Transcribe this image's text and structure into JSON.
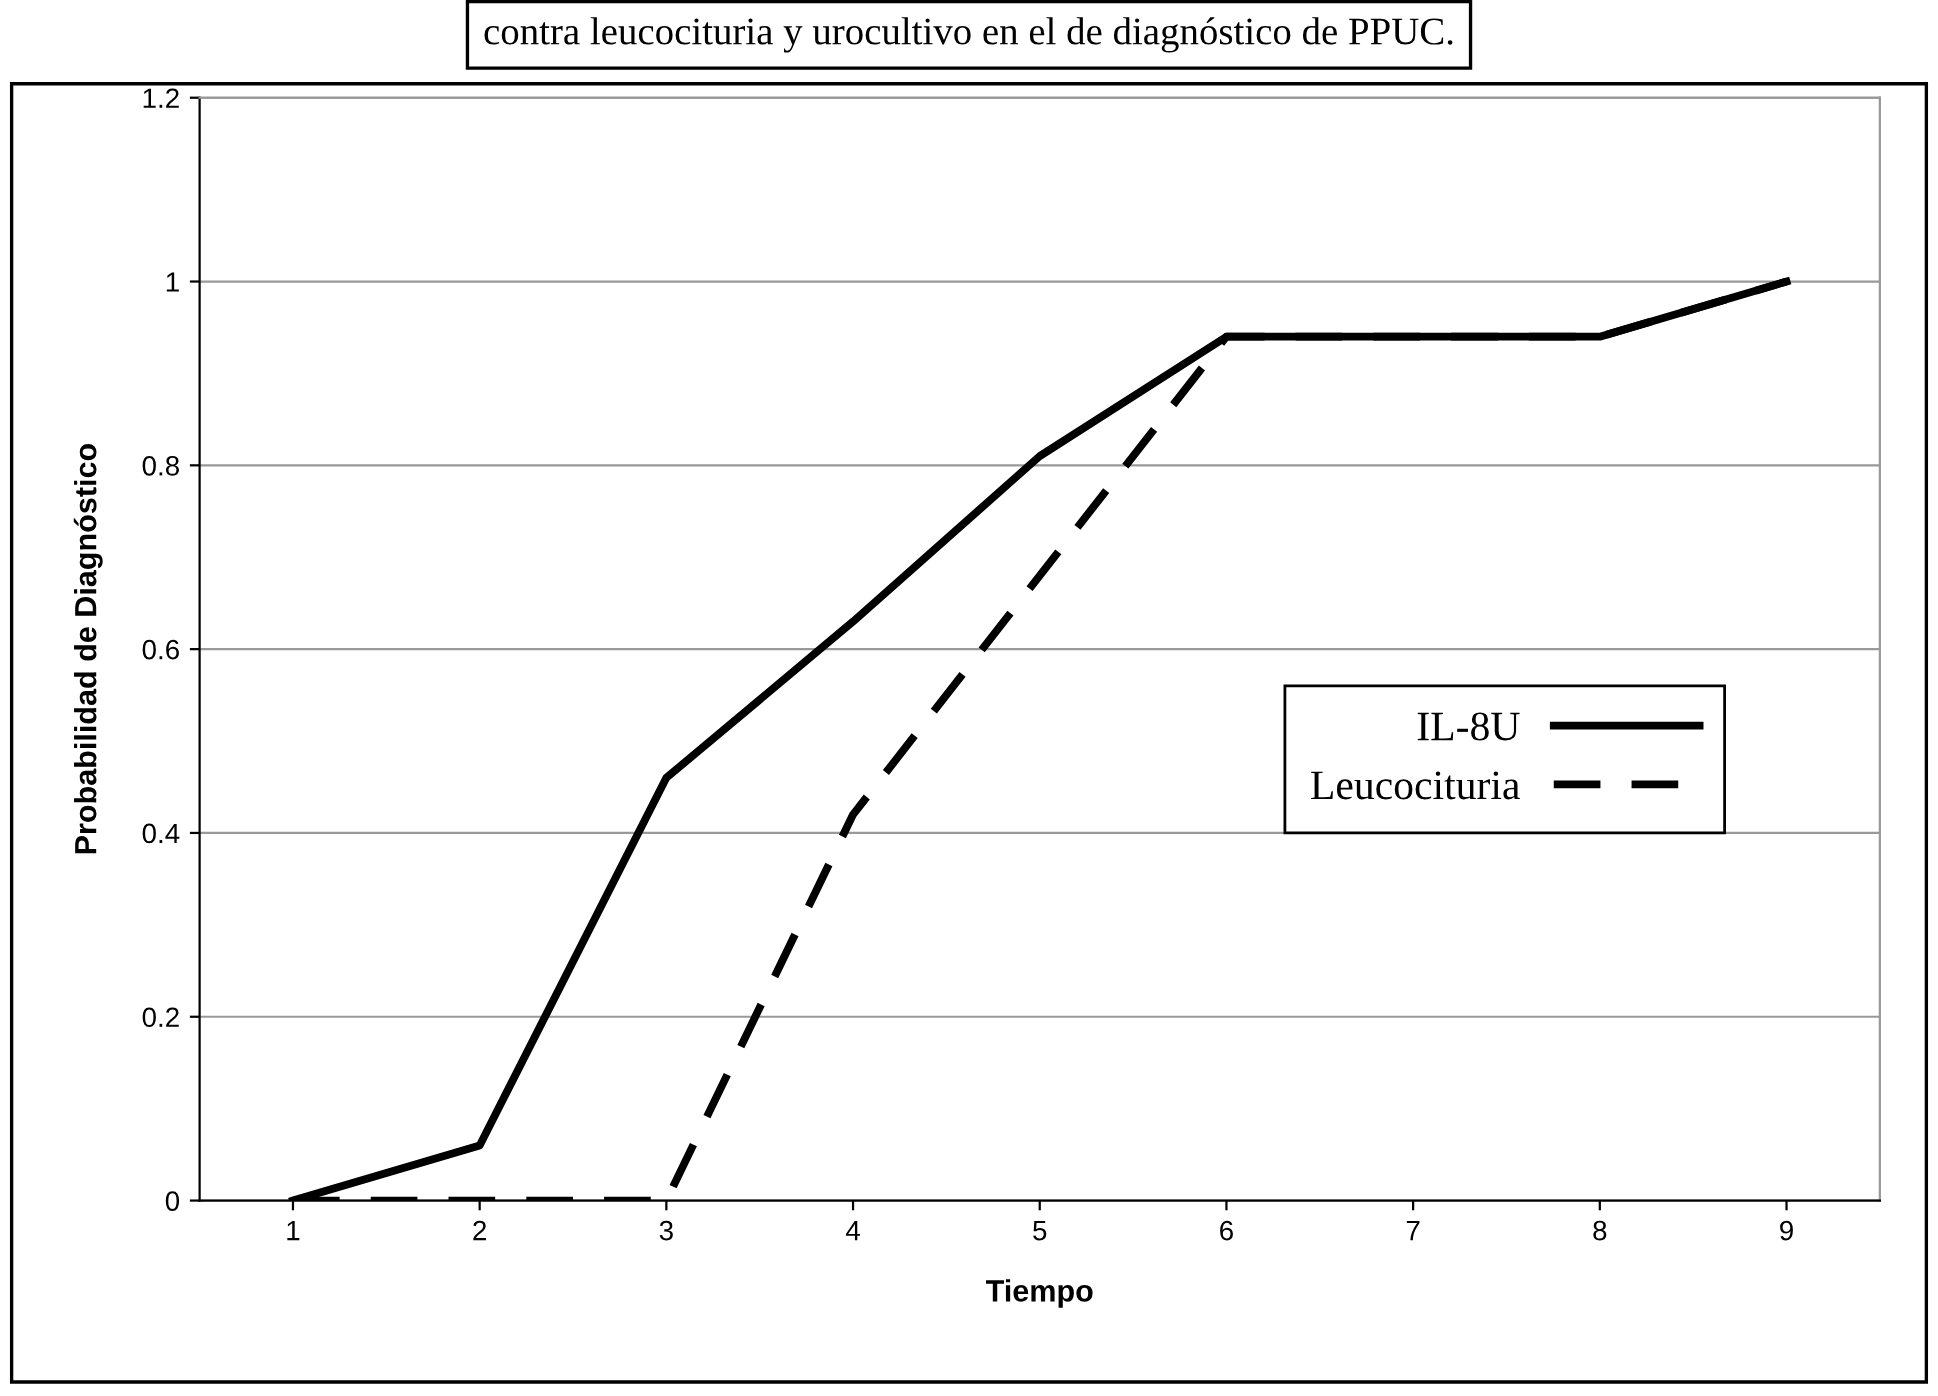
{
  "chart_data": {
    "type": "line",
    "title": "contra leucocituria y urocultivo en el de diagnóstico de PPUC.",
    "xlabel": "Tiempo",
    "ylabel": "Probabilidad de Diagnóstico",
    "categories": [
      "1",
      "2",
      "3",
      "4",
      "5",
      "6",
      "7",
      "8",
      "9"
    ],
    "series": [
      {
        "name": "IL-8U",
        "color": "#000000",
        "line_style": "solid",
        "values": [
          0,
          0.06,
          0.46,
          0.63,
          0.81,
          0.94,
          0.94,
          0.94,
          1.0
        ]
      },
      {
        "name": "Leucocituria",
        "color": "#000000",
        "line_style": "dashed",
        "values": [
          0,
          0,
          0,
          0.42,
          0.68,
          0.94,
          0.94,
          0.94,
          1.0
        ]
      }
    ],
    "ylim": [
      0,
      1.2
    ],
    "yticks": [
      0,
      0.2,
      0.4,
      0.6,
      0.8,
      1,
      1.2
    ],
    "grid": "y",
    "legend": "right",
    "marker": "none"
  }
}
